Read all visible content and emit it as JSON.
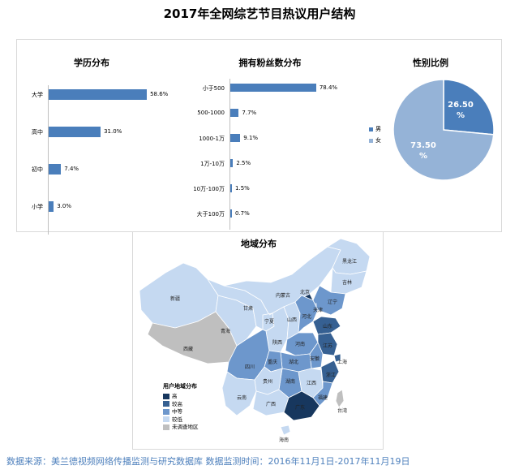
{
  "title": "2017年全网综艺节目热议用户结构",
  "chart_data": [
    {
      "type": "bar",
      "title": "学历分布",
      "categories": [
        "大学",
        "高中",
        "初中",
        "小学"
      ],
      "values": [
        58.6,
        31.0,
        7.4,
        3.0
      ],
      "labels": [
        "58.6%",
        "31.0%",
        "7.4%",
        "3.0%"
      ],
      "color": "#4a7ebb"
    },
    {
      "type": "bar",
      "title": "拥有粉丝数分布",
      "categories": [
        "小于500",
        "500-1000",
        "1000-1万",
        "1万-10万",
        "10万-100万",
        "大于100万"
      ],
      "values": [
        78.4,
        7.7,
        9.1,
        2.5,
        1.5,
        0.7
      ],
      "labels": [
        "78.4%",
        "7.7%",
        "9.1%",
        "2.5%",
        "1.5%",
        "0.7%"
      ],
      "color": "#4a7ebb"
    },
    {
      "type": "pie",
      "title": "性别比例",
      "categories": [
        "男",
        "女"
      ],
      "values": [
        26.5,
        73.5
      ],
      "labels": [
        "26.50\n%",
        "73.50\n%"
      ],
      "colors": [
        "#4a7ebb",
        "#95b3d7"
      ]
    }
  ],
  "map": {
    "title": "地域分布",
    "legend_title": "用户地域分布",
    "legend": [
      {
        "label": "高",
        "color": "#17375e"
      },
      {
        "label": "较高",
        "color": "#366092"
      },
      {
        "label": "中等",
        "color": "#6d97cc"
      },
      {
        "label": "较低",
        "color": "#c5d9f1"
      },
      {
        "label": "未调查地区",
        "color": "#bfbfbf"
      }
    ],
    "provinces": {
      "heilongjiang": "黑龙江",
      "jilin": "吉林",
      "liaoning": "辽宁",
      "neimenggu": "内蒙古",
      "beijing": "北京",
      "tianjin": "天津",
      "hebei": "河北",
      "shanxi": "山西",
      "shandong": "山东",
      "ningxia": "宁夏",
      "gansu": "甘肃",
      "xinjiang": "新疆",
      "qinghai": "青海",
      "xizang": "西藏",
      "shaanxi": "陕西",
      "henan": "河南",
      "jiangsu": "江苏",
      "anhui": "安徽",
      "shanghai": "上海",
      "hubei": "湖北",
      "sichuan": "四川",
      "chongqing": "重庆",
      "zhejiang": "浙江",
      "hunan": "湖南",
      "jiangxi": "江西",
      "guizhou": "贵州",
      "yunnan": "云南",
      "guangxi": "广西",
      "fujian": "福建",
      "guangdong": "广东",
      "taiwan": "台湾",
      "hainan": "海南"
    }
  },
  "footer": "数据来源：美兰德视频网络传播监测与研究数据库  数据监测时间：2016年11月1日-2017年11月19日"
}
